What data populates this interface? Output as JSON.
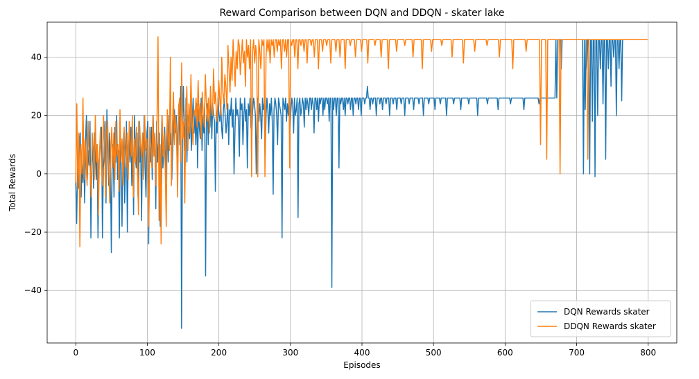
{
  "chart_data": {
    "type": "line",
    "title": "Reward Comparison between DQN and DDQN - skater lake",
    "xlabel": "Episodes",
    "ylabel": "Total Rewards",
    "xlim": [
      -40,
      840
    ],
    "ylim": [
      -58,
      52
    ],
    "xticks": [
      0,
      100,
      200,
      300,
      400,
      500,
      600,
      700,
      800
    ],
    "xtick_labels": [
      "0",
      "100",
      "200",
      "300",
      "400",
      "500",
      "600",
      "700",
      "800"
    ],
    "yticks": [
      -40,
      -20,
      0,
      20,
      40
    ],
    "ytick_labels": [
      "−40",
      "−20",
      "0",
      "20",
      "40"
    ],
    "grid": true,
    "legend_position": "bottom-right",
    "series": [
      {
        "name": "DQN Rewards skater",
        "color": "#1f77b4",
        "values": [
          -3,
          -17,
          2,
          -5,
          10,
          14,
          -8,
          4,
          -3,
          6,
          -10,
          12,
          20,
          -2,
          8,
          3,
          18,
          -22,
          4,
          10,
          -5,
          14,
          6,
          -2,
          10,
          -22,
          4,
          8,
          12,
          16,
          -22,
          2,
          6,
          18,
          -10,
          22,
          8,
          -4,
          14,
          2,
          -27,
          6,
          10,
          -8,
          16,
          4,
          20,
          -2,
          8,
          -22,
          12,
          4,
          -18,
          6,
          14,
          -10,
          2,
          18,
          -20,
          8,
          12,
          4,
          16,
          -4,
          10,
          -14,
          20,
          6,
          2,
          14,
          -8,
          18,
          4,
          10,
          -16,
          12,
          6,
          20,
          2,
          -8,
          14,
          18,
          -24,
          10,
          4,
          16,
          -2,
          20,
          8,
          12,
          -12,
          18,
          4,
          10,
          14,
          -18,
          6,
          20,
          2,
          8,
          16,
          -2,
          12,
          18,
          4,
          20,
          10,
          14,
          -2,
          8,
          18,
          22,
          14,
          20,
          4,
          16,
          24,
          10,
          30,
          -53,
          12,
          30,
          18,
          8,
          26,
          4,
          20,
          16,
          12,
          24,
          8,
          18,
          26,
          14,
          20,
          10,
          24,
          2,
          22,
          16,
          12,
          26,
          8,
          20,
          14,
          24,
          -35,
          18,
          24,
          10,
          22,
          16,
          26,
          12,
          24,
          20,
          18,
          -6,
          22,
          14,
          26,
          20,
          18,
          24,
          16,
          12,
          22,
          26,
          20,
          14,
          18,
          24,
          10,
          22,
          20,
          26,
          16,
          22,
          0,
          14,
          26,
          20,
          22,
          18,
          6,
          26,
          22,
          24,
          10,
          20,
          26,
          18,
          22,
          2,
          24,
          20,
          26,
          16,
          14,
          22,
          26,
          24,
          20,
          0,
          22,
          26,
          18,
          24,
          20,
          12,
          26,
          22,
          24,
          6,
          20,
          26,
          22,
          14,
          24,
          20,
          26,
          18,
          -7,
          22,
          26,
          24,
          20,
          10,
          26,
          24,
          22,
          20,
          -22,
          26,
          24,
          22,
          26,
          18,
          24,
          20,
          26,
          16,
          22,
          26,
          24,
          14,
          26,
          20,
          22,
          26,
          -15,
          24,
          26,
          20,
          22,
          26,
          24,
          16,
          26,
          22,
          26,
          24,
          20,
          26,
          26,
          22,
          26,
          24,
          14,
          26,
          26,
          22,
          26,
          18,
          26,
          24,
          26,
          26,
          20,
          26,
          22,
          26,
          26,
          24,
          26,
          18,
          26,
          26,
          -39,
          26,
          22,
          26,
          26,
          20,
          26,
          26,
          2,
          26,
          24,
          26,
          26,
          22,
          26,
          20,
          26,
          26,
          24,
          26,
          26,
          22,
          26,
          26,
          20,
          26,
          26,
          24,
          26,
          26,
          22,
          26,
          26,
          20,
          26,
          26,
          26,
          24,
          26,
          26,
          30,
          26,
          26,
          22,
          26,
          26,
          24,
          26,
          26,
          26,
          20,
          26,
          26,
          26,
          24,
          26,
          26,
          22,
          26,
          26,
          26,
          24,
          26,
          26,
          26,
          20,
          26,
          26,
          26,
          24,
          26,
          26,
          26,
          22,
          26,
          26,
          26,
          26,
          24,
          26,
          26,
          26,
          20,
          26,
          26,
          26,
          26,
          24,
          26,
          26,
          26,
          26,
          22,
          26,
          26,
          26,
          26,
          26,
          24,
          26,
          26,
          26,
          26,
          20,
          26,
          26,
          26,
          26,
          26,
          24,
          26,
          26,
          26,
          26,
          26,
          26,
          22,
          26,
          26,
          26,
          26,
          26,
          24,
          26,
          26,
          26,
          26,
          26,
          26,
          20,
          26,
          26,
          26,
          26,
          26,
          26,
          26,
          24,
          26,
          26,
          26,
          26,
          26,
          26,
          26,
          22,
          26,
          26,
          26,
          26,
          26,
          26,
          26,
          26,
          24,
          26,
          26,
          26,
          26,
          26,
          26,
          26,
          26,
          26,
          20,
          26,
          26,
          26,
          26,
          26,
          26,
          26,
          26,
          26,
          26,
          24,
          26,
          26,
          26,
          26,
          26,
          26,
          26,
          26,
          26,
          26,
          26,
          22,
          26,
          26,
          26,
          26,
          26,
          26,
          26,
          26,
          26,
          26,
          26,
          26,
          26,
          24,
          26,
          26,
          26,
          26,
          26,
          26,
          26,
          26,
          26,
          26,
          26,
          26,
          26,
          26,
          22,
          26,
          26,
          26,
          26,
          26,
          26,
          26,
          26,
          26,
          26,
          26,
          26,
          26,
          26,
          26,
          26,
          24,
          26,
          26,
          26,
          26,
          26,
          26,
          26,
          26,
          26,
          26,
          26,
          26,
          26,
          26,
          26,
          26,
          26,
          26,
          46,
          26,
          46,
          46,
          46,
          46,
          36,
          46,
          46,
          46,
          46,
          46,
          46,
          46,
          46,
          46,
          46,
          46,
          46,
          46,
          46,
          46,
          46,
          46,
          46,
          46,
          46,
          46,
          46,
          46,
          46,
          0,
          46,
          22,
          46,
          36,
          46,
          46,
          0,
          46,
          46,
          18,
          46,
          46,
          -1,
          46,
          46,
          20,
          46,
          46,
          36,
          46,
          46,
          24,
          46,
          46,
          5,
          46,
          46,
          36,
          46,
          46,
          30,
          46,
          46,
          40,
          46,
          46,
          20,
          46,
          46,
          36,
          46,
          46,
          25,
          46,
          46,
          46,
          46,
          46,
          46,
          46,
          46,
          46,
          46,
          46,
          46,
          46,
          46,
          46,
          46,
          46,
          46,
          46,
          46,
          46,
          46,
          46,
          46,
          46,
          46,
          46,
          46,
          46
        ]
      },
      {
        "name": "DDQN Rewards skater",
        "color": "#ff7f0e",
        "values": [
          -3,
          24,
          -5,
          14,
          -25,
          10,
          0,
          26,
          -2,
          12,
          4,
          -4,
          18,
          6,
          2,
          -8,
          14,
          8,
          -2,
          20,
          4,
          10,
          -14,
          6,
          16,
          2,
          -4,
          20,
          10,
          -8,
          12,
          18,
          4,
          -10,
          8,
          16,
          2,
          14,
          -2,
          18,
          6,
          10,
          -6,
          22,
          4,
          12,
          -4,
          16,
          8,
          2,
          14,
          -2,
          18,
          10,
          6,
          20,
          -8,
          12,
          4,
          16,
          2,
          -14,
          18,
          10,
          6,
          14,
          -2,
          20,
          8,
          12,
          4,
          -18,
          16,
          10,
          2,
          20,
          6,
          14,
          -4,
          18,
          47,
          -16,
          10,
          -24,
          20,
          6,
          14,
          2,
          -18,
          22,
          12,
          8,
          40,
          -4,
          16,
          28,
          10,
          20,
          14,
          -8,
          22,
          26,
          4,
          38,
          12,
          18,
          -10,
          20,
          30,
          8,
          24,
          14,
          34,
          18,
          10,
          22,
          20,
          26,
          16,
          32,
          18,
          24,
          12,
          28,
          20,
          16,
          34,
          24,
          18,
          26,
          14,
          30,
          22,
          20,
          36,
          24,
          28,
          18,
          22,
          32,
          26,
          20,
          40,
          28,
          24,
          34,
          30,
          22,
          44,
          36,
          28,
          40,
          32,
          46,
          38,
          30,
          42,
          36,
          46,
          44,
          34,
          40,
          46,
          38,
          42,
          30,
          46,
          40,
          44,
          36,
          46,
          -1,
          42,
          46,
          38,
          44,
          40,
          -1,
          46,
          42,
          36,
          46,
          44,
          46,
          -1,
          40,
          46,
          42,
          46,
          38,
          46,
          44,
          46,
          40,
          46,
          46,
          42,
          46,
          44,
          46,
          36,
          46,
          46,
          42,
          46,
          40,
          46,
          46,
          2,
          46,
          44,
          46,
          46,
          40,
          46,
          46,
          36,
          46,
          46,
          44,
          46,
          46,
          42,
          46,
          46,
          38,
          46,
          46,
          46,
          44,
          46,
          46,
          40,
          46,
          46,
          46,
          36,
          46,
          46,
          46,
          42,
          46,
          46,
          46,
          44,
          46,
          46,
          46,
          38,
          46,
          46,
          46,
          46,
          42,
          46,
          46,
          46,
          40,
          46,
          46,
          46,
          46,
          36,
          46,
          46,
          46,
          46,
          44,
          46,
          46,
          46,
          46,
          40,
          46,
          46,
          46,
          46,
          46,
          42,
          46,
          46,
          46,
          46,
          46,
          38,
          46,
          46,
          46,
          46,
          46,
          46,
          44,
          46,
          46,
          46,
          46,
          46,
          40,
          46,
          46,
          46,
          46,
          46,
          46,
          36,
          46,
          46,
          46,
          46,
          46,
          46,
          46,
          42,
          46,
          46,
          46,
          46,
          46,
          46,
          46,
          44,
          46,
          46,
          46,
          46,
          46,
          46,
          46,
          40,
          46,
          46,
          46,
          46,
          46,
          46,
          46,
          46,
          36,
          46,
          46,
          46,
          46,
          46,
          46,
          46,
          46,
          42,
          46,
          46,
          46,
          46,
          46,
          46,
          46,
          46,
          46,
          44,
          46,
          46,
          46,
          46,
          46,
          46,
          46,
          46,
          46,
          40,
          46,
          46,
          46,
          46,
          46,
          46,
          46,
          46,
          46,
          46,
          38,
          46,
          46,
          46,
          46,
          46,
          46,
          46,
          46,
          46,
          46,
          42,
          46,
          46,
          46,
          46,
          46,
          46,
          46,
          46,
          46,
          46,
          46,
          44,
          46,
          46,
          46,
          46,
          46,
          46,
          46,
          46,
          46,
          46,
          46,
          40,
          46,
          46,
          46,
          46,
          46,
          46,
          46,
          46,
          46,
          46,
          46,
          46,
          36,
          46,
          46,
          46,
          46,
          46,
          46,
          46,
          46,
          46,
          46,
          46,
          46,
          42,
          46,
          46,
          46,
          46,
          46,
          46,
          46,
          46,
          46,
          46,
          46,
          46,
          46,
          10,
          46,
          46,
          46,
          46,
          46,
          5,
          46,
          46,
          46,
          46,
          46,
          46,
          46,
          46,
          46,
          46,
          46,
          46,
          0,
          46,
          46,
          46,
          46,
          46,
          46,
          46,
          46,
          46,
          46,
          46,
          46,
          46,
          46,
          46,
          46,
          46,
          46,
          46,
          46,
          46,
          46,
          46,
          46,
          46,
          46,
          5,
          46,
          46,
          46,
          46,
          46,
          46,
          46,
          46,
          46,
          46,
          46,
          46,
          46,
          46,
          46,
          46,
          46,
          46,
          46,
          46,
          46,
          46,
          46,
          46,
          46,
          46,
          46,
          46,
          46,
          46,
          46,
          46,
          46,
          46,
          46,
          46,
          46,
          46,
          46,
          46,
          46,
          46,
          46,
          46,
          46,
          46,
          46,
          46,
          46,
          46,
          46,
          46,
          46,
          46,
          46,
          46,
          46,
          46
        ]
      }
    ]
  }
}
